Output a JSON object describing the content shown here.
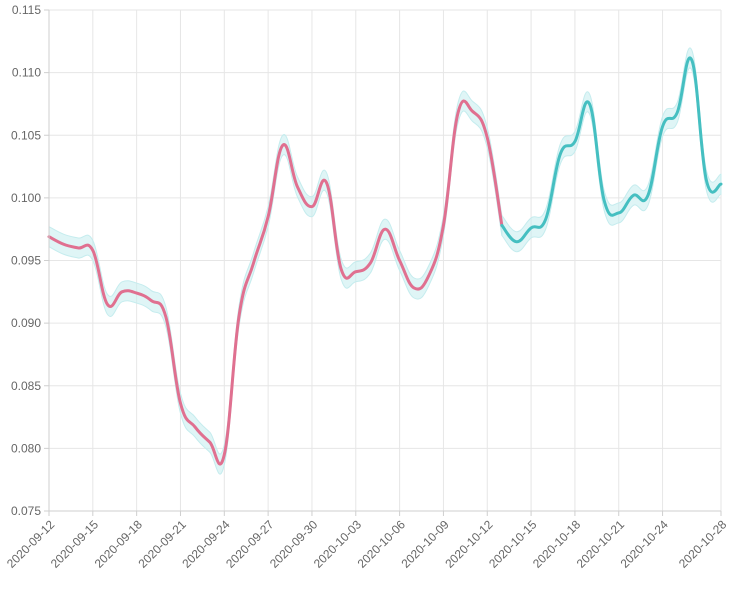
{
  "chart_data": {
    "type": "line",
    "title": "",
    "xlabel": "",
    "ylabel": "",
    "x_start": "2020-09-12",
    "x_end": "2020-10-28",
    "x_tick_labels": [
      "2020-09-12",
      "2020-09-15",
      "2020-09-18",
      "2020-09-21",
      "2020-09-24",
      "2020-09-27",
      "2020-09-30",
      "2020-10-03",
      "2020-10-06",
      "2020-10-09",
      "2020-10-12",
      "2020-10-15",
      "2020-10-18",
      "2020-10-21",
      "2020-10-24",
      "2020-10-28"
    ],
    "y_tick_labels": [
      "0.075",
      "0.080",
      "0.085",
      "0.090",
      "0.095",
      "0.100",
      "0.105",
      "0.110",
      "0.115"
    ],
    "ylim": [
      0.075,
      0.115
    ],
    "grid": true,
    "series": [
      {
        "color": "#e07090",
        "x": [
          "2020-09-12",
          "2020-09-13",
          "2020-09-14",
          "2020-09-15",
          "2020-09-16",
          "2020-09-17",
          "2020-09-18",
          "2020-09-19",
          "2020-09-20",
          "2020-09-21",
          "2020-09-22",
          "2020-09-23",
          "2020-09-24",
          "2020-09-25",
          "2020-09-26",
          "2020-09-27",
          "2020-09-28",
          "2020-09-29",
          "2020-09-30",
          "2020-10-01",
          "2020-10-02",
          "2020-10-03",
          "2020-10-04",
          "2020-10-05",
          "2020-10-06",
          "2020-10-07",
          "2020-10-08",
          "2020-10-09",
          "2020-10-10",
          "2020-10-11",
          "2020-10-12",
          "2020-10-13"
        ],
        "values": [
          0.0969,
          0.0963,
          0.096,
          0.0958,
          0.0915,
          0.0925,
          0.0924,
          0.0918,
          0.0905,
          0.0836,
          0.0817,
          0.0805,
          0.0795,
          0.0905,
          0.0948,
          0.0985,
          0.1042,
          0.1009,
          0.0993,
          0.1012,
          0.0943,
          0.0941,
          0.0948,
          0.0975,
          0.095,
          0.0928,
          0.0938,
          0.0978,
          0.1068,
          0.1069,
          0.1048,
          0.0978
        ]
      },
      {
        "color": "#45bfc1",
        "x": [
          "2020-10-13",
          "2020-10-14",
          "2020-10-15",
          "2020-10-16",
          "2020-10-17",
          "2020-10-18",
          "2020-10-19",
          "2020-10-20",
          "2020-10-21",
          "2020-10-22",
          "2020-10-23",
          "2020-10-24",
          "2020-10-25",
          "2020-10-26",
          "2020-10-27",
          "2020-10-28"
        ],
        "values": [
          0.0978,
          0.0965,
          0.0976,
          0.0983,
          0.1035,
          0.1045,
          0.1075,
          0.0998,
          0.0988,
          0.1002,
          0.1002,
          0.1057,
          0.1068,
          0.111,
          0.1014,
          0.1011
        ]
      }
    ],
    "band": {
      "color": "#c5ecee",
      "half_width": 0.0008
    }
  }
}
